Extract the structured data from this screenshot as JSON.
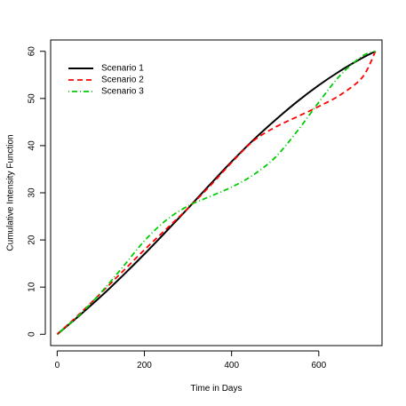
{
  "chart_data": {
    "type": "line",
    "xlabel": "Time in Days",
    "ylabel": "Cumulative Intensity Function",
    "xlim": [
      -15,
      745
    ],
    "ylim": [
      -2.4,
      62.4
    ],
    "x_ticks": [
      0,
      200,
      400,
      600
    ],
    "y_ticks": [
      0,
      10,
      20,
      30,
      40,
      50,
      60
    ],
    "grid": false,
    "legend": "top-left",
    "series": [
      {
        "name": "Scenario 1",
        "color": "#000000",
        "dash": "solid",
        "x": [
          0,
          50,
          100,
          150,
          200,
          250,
          300,
          350,
          400,
          450,
          500,
          550,
          600,
          650,
          700,
          730
        ],
        "y": [
          0,
          3.9,
          8.0,
          12.4,
          17.0,
          21.8,
          26.7,
          31.7,
          36.6,
          41.2,
          45.4,
          49.3,
          52.8,
          55.9,
          58.6,
          60.0
        ]
      },
      {
        "name": "Scenario 2",
        "color": "#ff0000",
        "dash": "dashed",
        "x": [
          0,
          50,
          100,
          150,
          200,
          250,
          300,
          350,
          400,
          450,
          500,
          550,
          600,
          650,
          700,
          730
        ],
        "y": [
          0,
          4.2,
          8.7,
          13.3,
          17.9,
          22.3,
          26.7,
          31.4,
          36.4,
          41.0,
          43.9,
          46.1,
          48.3,
          50.8,
          54.5,
          60.0
        ]
      },
      {
        "name": "Scenario 3",
        "color": "#00cc00",
        "dash": "dotdash",
        "x": [
          0,
          50,
          100,
          150,
          200,
          250,
          300,
          350,
          400,
          450,
          500,
          550,
          600,
          650,
          700,
          730
        ],
        "y": [
          0,
          4.0,
          8.8,
          14.2,
          19.8,
          24.2,
          27.2,
          29.2,
          31.2,
          33.8,
          37.5,
          43.0,
          49.2,
          55.0,
          59.0,
          60.0
        ]
      }
    ]
  }
}
